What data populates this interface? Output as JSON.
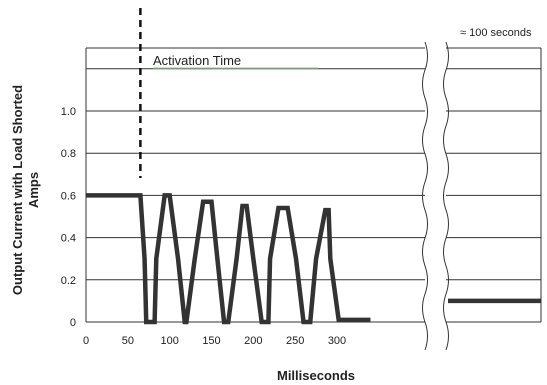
{
  "chart_data": {
    "type": "line",
    "xlabel": "Milliseconds",
    "ylabel_line1": "Output Current with Load Shorted",
    "ylabel_line2": "Amps",
    "x_ticks": [
      0,
      50,
      100,
      150,
      200,
      250,
      300
    ],
    "y_ticks": [
      "0",
      "0.2",
      "0.4",
      "0.6",
      "0.8",
      "1.0"
    ],
    "xlim": [
      0,
      360
    ],
    "ylim": [
      0,
      1.2
    ],
    "grid": "horizontal",
    "series": [
      {
        "x": [
          0,
          65,
          70,
          72,
          82,
          84,
          94,
          100,
          110,
          118,
          120,
          130,
          140,
          150,
          157,
          165,
          170,
          180,
          187,
          192,
          200,
          210,
          218,
          220,
          230,
          241,
          251,
          260,
          268,
          275,
          286,
          290,
          292,
          302,
          310,
          340
        ],
        "y": [
          0.6,
          0.6,
          0.3,
          0,
          0,
          0.3,
          0.6,
          0.6,
          0.3,
          0,
          0,
          0.3,
          0.57,
          0.57,
          0.3,
          0,
          0,
          0.3,
          0.55,
          0.55,
          0.3,
          0,
          0,
          0.3,
          0.54,
          0.54,
          0.3,
          0,
          0,
          0.3,
          0.53,
          0.53,
          0.3,
          0.01,
          0.01,
          0.01
        ]
      }
    ],
    "break_segment": {
      "label": "≈ 100 seconds",
      "y": 0.1
    },
    "activation_annotation": {
      "label": "Activation Time",
      "x": 65
    }
  },
  "colors": {
    "line": "#333333",
    "grid": "#333333",
    "marker": "#111111",
    "underline": "#a8d8a0"
  }
}
